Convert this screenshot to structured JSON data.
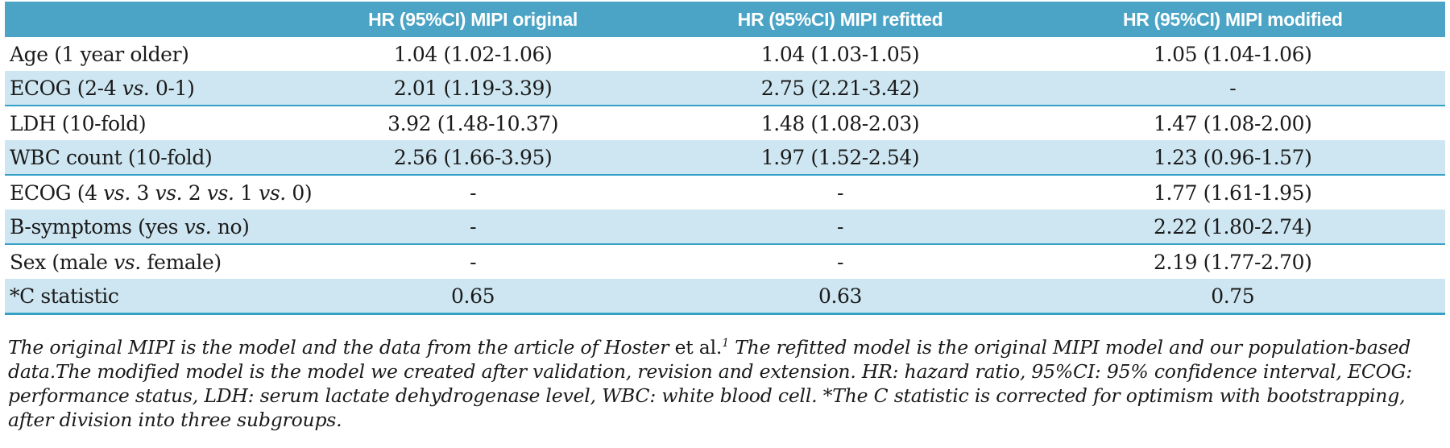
{
  "table": {
    "header": {
      "col_label": "",
      "col_original": "HR (95%CI) MIPI original",
      "col_refitted": "HR (95%CI) MIPI refitted",
      "col_modified": "HR (95%CI) MIPI modified"
    },
    "rows": [
      {
        "label": "Age (1 year older)",
        "original": "1.04 (1.02-1.06)",
        "refitted": "1.04 (1.03-1.05)",
        "modified": "1.05 (1.04-1.06)",
        "shaded": false
      },
      {
        "label": "ECOG (2-4 vs. 0-1)",
        "original": "2.01 (1.19-3.39)",
        "refitted": "2.75 (2.21-3.42)",
        "modified": "-",
        "shaded": true
      },
      {
        "label": "LDH (10-fold)",
        "original": "3.92 (1.48-10.37)",
        "refitted": "1.48 (1.08-2.03)",
        "modified": "1.47 (1.08-2.00)",
        "shaded": false
      },
      {
        "label": "WBC count (10-fold)",
        "original": "2.56 (1.66-3.95)",
        "refitted": "1.97 (1.52-2.54)",
        "modified": "1.23 (0.96-1.57)",
        "shaded": true
      },
      {
        "label": "ECOG (4 vs. 3 vs. 2 vs. 1 vs. 0)",
        "original": "-",
        "refitted": "-",
        "modified": "1.77 (1.61-1.95)",
        "shaded": false
      },
      {
        "label": "B-symptoms (yes vs. no)",
        "original": "-",
        "refitted": "-",
        "modified": "2.22 (1.80-2.74)",
        "shaded": true
      },
      {
        "label": "Sex (male vs. female)",
        "original": "-",
        "refitted": "-",
        "modified": "2.19 (1.77-2.70)",
        "shaded": false
      },
      {
        "label": "*C statistic",
        "original": "0.65",
        "refitted": "0.63",
        "modified": "0.75",
        "shaded": true
      }
    ]
  },
  "footnote": {
    "segments": [
      {
        "text": "The original MIPI is the model and the data from the article of Hoster ",
        "style": "italic"
      },
      {
        "text": "et al.",
        "style": "upright"
      },
      {
        "text": "1",
        "style": "sup"
      },
      {
        "text": " The refitted model is the original MIPI model and our population-based data.The modified model is the model we created after validation, revision and extension. HR: hazard ratio, 95%CI: 95% confidence interval, ECOG: performance status, LDH: serum lactate dehydrogenase level, WBC: white blood cell. *The C statistic is corrected for optimism with bootstrapping, after division into three subgroups.",
        "style": "italic"
      }
    ]
  },
  "colors": {
    "header_bg": "#4BA4C6",
    "shaded_row_bg": "#CEE6F1",
    "divider": "#35A0C6",
    "text": "#1A1A1A"
  }
}
